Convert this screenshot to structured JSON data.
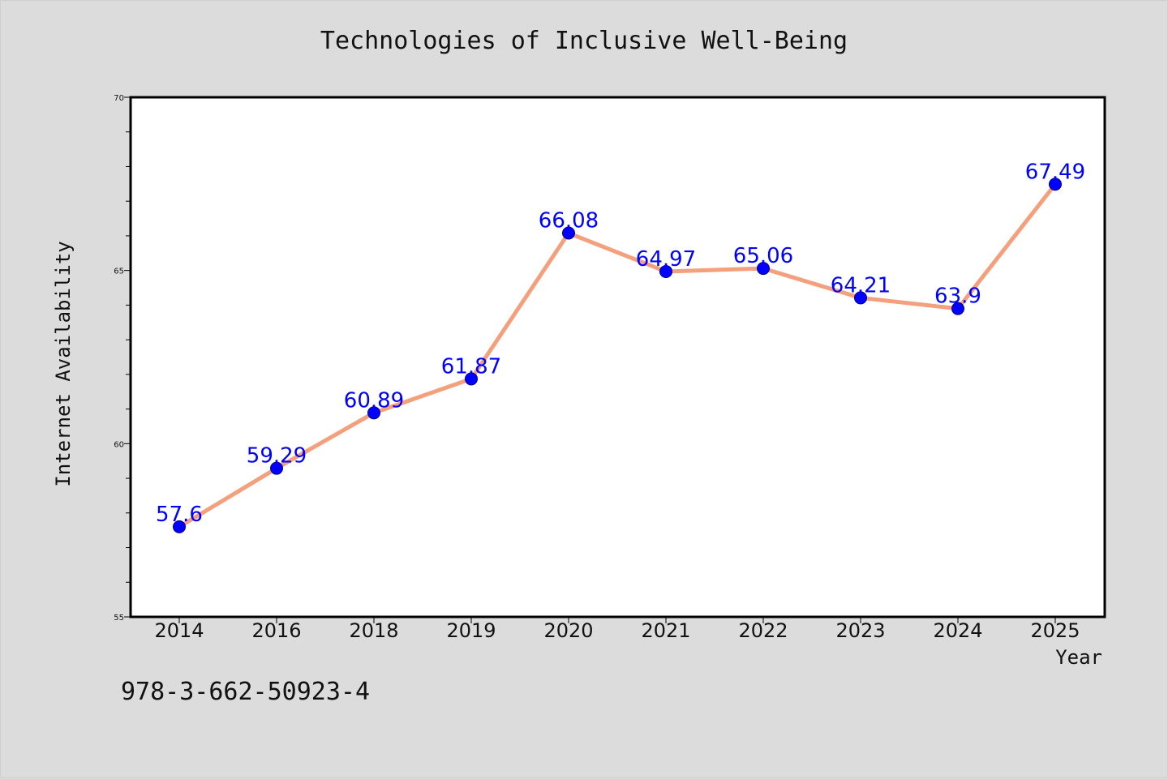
{
  "title": "Technologies of Inclusive Well-Being",
  "footer_text": "978-3-662-50923-4",
  "colors": {
    "background": "#dcdcdc",
    "plot_area": "#ffffff",
    "line": "#f4a07c",
    "marker": "#0000ff",
    "data_label": "#0000ff"
  },
  "chart_data": {
    "type": "line",
    "title": "Technologies of Inclusive Well-Being",
    "xlabel": "Year",
    "ylabel": "Internet Availability",
    "categories": [
      "2014",
      "2016",
      "2018",
      "2019",
      "2020",
      "2021",
      "2022",
      "2023",
      "2024",
      "2025"
    ],
    "series": [
      {
        "values": [
          57.6,
          59.29,
          60.89,
          61.87,
          66.08,
          64.97,
          65.06,
          64.21,
          63.9,
          67.49
        ],
        "data_labels": [
          "57.6",
          "59.29",
          "60.89",
          "61.87",
          "66.08",
          "64.97",
          "65.06",
          "64.21",
          "63.9",
          "67.49"
        ]
      }
    ],
    "ylim": [
      55,
      70
    ],
    "y_ticks": [
      55,
      60,
      65,
      70
    ],
    "y_minor_step": 1,
    "grid": false,
    "legend": "none"
  }
}
